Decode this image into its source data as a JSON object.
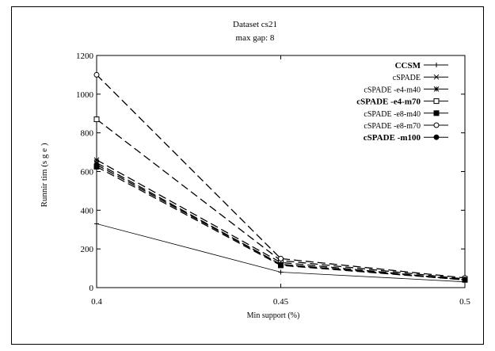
{
  "chart_data": {
    "type": "line",
    "title": "Dataset cs21",
    "subtitle": "max gap: 8",
    "xlabel": "Min support (%)",
    "ylabel": "Running time (s)",
    "ylabel_visible": "Runnir tim (s g e )",
    "x": [
      0.4,
      0.45,
      0.5
    ],
    "x_ticks": [
      "0.4",
      "0.45",
      "0.5"
    ],
    "xlim": [
      0.4,
      0.5
    ],
    "y_ticks": [
      "0",
      "200",
      "400",
      "600",
      "800",
      "1000",
      "1200"
    ],
    "ylim": [
      0,
      1200
    ],
    "grid": false,
    "legend_position": "top-right",
    "series": [
      {
        "name": "CCSM",
        "values": [
          330,
          80,
          30
        ],
        "marker": "plus",
        "dash": "solid",
        "bold": true
      },
      {
        "name": "cSPADE",
        "values": [
          645,
          120,
          40
        ],
        "marker": "x",
        "dash": "dashed",
        "bold": false
      },
      {
        "name": "cSPADE -e4-m40",
        "values": [
          660,
          130,
          40
        ],
        "marker": "asterisk",
        "dash": "dashed",
        "bold": false
      },
      {
        "name": "cSPADE -e4-m70",
        "values": [
          870,
          140,
          45
        ],
        "marker": "square-open",
        "dash": "dashed",
        "bold": true
      },
      {
        "name": "cSPADE -e8-m40",
        "values": [
          625,
          115,
          40
        ],
        "marker": "square-filled",
        "dash": "dashed",
        "bold": false
      },
      {
        "name": "cSPADE -e8-m70",
        "values": [
          1100,
          150,
          50
        ],
        "marker": "circle-open",
        "dash": "dashed",
        "bold": false
      },
      {
        "name": "cSPADE -m100",
        "values": [
          635,
          120,
          42
        ],
        "marker": "circle-filled",
        "dash": "dashed",
        "bold": true
      }
    ]
  }
}
